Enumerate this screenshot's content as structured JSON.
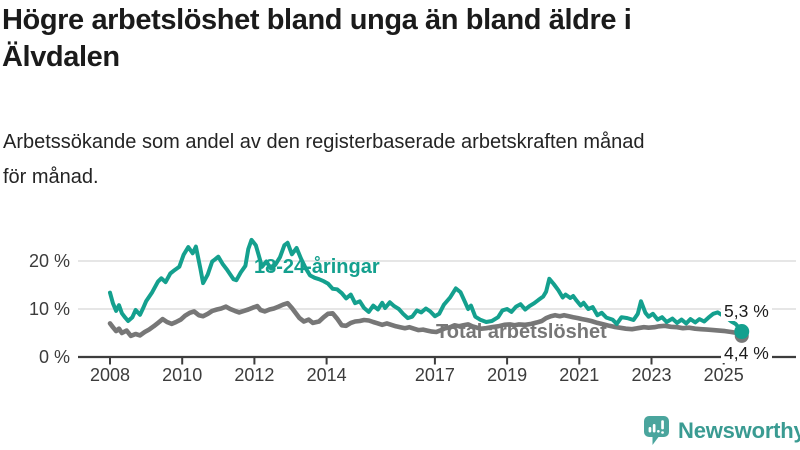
{
  "header": {
    "title": "Högre arbetslöshet bland unga än bland äldre i Älvdalen",
    "title_lines": [
      "Högre arbetslöshet bland unga än bland äldre i",
      "Älvdalen"
    ],
    "subtitle": "Arbetssökande som andel av den registerbaserade arbetskraften månad för månad.",
    "subtitle_lines": [
      "Arbetssökande som andel av den registerbaserade arbetskraften månad",
      "för månad."
    ]
  },
  "footer": {
    "brand": "Newsworthy",
    "brand_color": "#3a9b92",
    "brand_icon": "bar-chart-speech-bubble-icon",
    "brand_icon_color": "#4aa59d"
  },
  "chart_data": {
    "type": "line",
    "title": "Högre arbetslöshet bland unga än bland äldre i Älvdalen",
    "subtitle": "Arbetssökande som andel av den registerbaserade arbetskraften månad för månad.",
    "unit": "%",
    "xlabel": "",
    "ylabel": "",
    "xlim": [
      2007.2,
      2026.1
    ],
    "ylim": [
      0,
      26
    ],
    "grid": "horizontal",
    "legend_position": "inline-labels",
    "x_ticks": [
      2008,
      2010,
      2012,
      2014,
      2017,
      2019,
      2021,
      2023,
      2025
    ],
    "x_tick_labels": [
      "2008",
      "2010",
      "2012",
      "2014",
      "2017",
      "2019",
      "2021",
      "2023",
      "2025"
    ],
    "y_ticks": [
      {
        "value": 0,
        "label": "0 %"
      },
      {
        "value": 10,
        "label": "10 %"
      },
      {
        "value": 20,
        "label": "20 %"
      }
    ],
    "colors": {
      "grid": "#dedede",
      "axis": "#3d3d3d",
      "tick_text": "#3c3c3c"
    },
    "series": [
      {
        "name": "18-24-åringar",
        "color": "#14a08e",
        "end_label": "5,3 %",
        "end_value": 5.3,
        "points": [
          [
            2008.0,
            13.4
          ],
          [
            2008.08,
            11.2
          ],
          [
            2008.17,
            9.6
          ],
          [
            2008.25,
            10.8
          ],
          [
            2008.33,
            9.1
          ],
          [
            2008.42,
            8.2
          ],
          [
            2008.5,
            7.5
          ],
          [
            2008.62,
            8.3
          ],
          [
            2008.71,
            9.8
          ],
          [
            2008.83,
            8.8
          ],
          [
            2008.92,
            10.2
          ],
          [
            2009.0,
            11.6
          ],
          [
            2009.17,
            13.5
          ],
          [
            2009.33,
            15.7
          ],
          [
            2009.42,
            16.4
          ],
          [
            2009.54,
            15.6
          ],
          [
            2009.67,
            17.4
          ],
          [
            2009.79,
            18.1
          ],
          [
            2009.92,
            18.8
          ],
          [
            2010.04,
            21.3
          ],
          [
            2010.17,
            22.9
          ],
          [
            2010.29,
            21.6
          ],
          [
            2010.38,
            23.0
          ],
          [
            2010.5,
            18.5
          ],
          [
            2010.58,
            15.4
          ],
          [
            2010.71,
            17.2
          ],
          [
            2010.83,
            19.9
          ],
          [
            2010.92,
            20.4
          ],
          [
            2011.0,
            20.9
          ],
          [
            2011.12,
            19.4
          ],
          [
            2011.25,
            18.1
          ],
          [
            2011.42,
            16.2
          ],
          [
            2011.5,
            16.0
          ],
          [
            2011.62,
            17.6
          ],
          [
            2011.75,
            19.0
          ],
          [
            2011.83,
            22.5
          ],
          [
            2011.92,
            24.4
          ],
          [
            2012.04,
            23.3
          ],
          [
            2012.12,
            21.2
          ],
          [
            2012.21,
            18.8
          ],
          [
            2012.33,
            19.9
          ],
          [
            2012.46,
            18.4
          ],
          [
            2012.58,
            19.2
          ],
          [
            2012.71,
            20.8
          ],
          [
            2012.83,
            23.3
          ],
          [
            2012.92,
            23.8
          ],
          [
            2013.04,
            21.4
          ],
          [
            2013.17,
            22.7
          ],
          [
            2013.29,
            20.5
          ],
          [
            2013.42,
            18.5
          ],
          [
            2013.54,
            17.0
          ],
          [
            2013.67,
            16.5
          ],
          [
            2013.79,
            16.2
          ],
          [
            2013.92,
            15.8
          ],
          [
            2014.04,
            15.3
          ],
          [
            2014.17,
            14.2
          ],
          [
            2014.29,
            14.1
          ],
          [
            2014.42,
            13.3
          ],
          [
            2014.54,
            12.2
          ],
          [
            2014.67,
            13.0
          ],
          [
            2014.79,
            11.2
          ],
          [
            2014.92,
            11.6
          ],
          [
            2015.04,
            10.2
          ],
          [
            2015.17,
            9.4
          ],
          [
            2015.29,
            10.7
          ],
          [
            2015.42,
            9.9
          ],
          [
            2015.54,
            11.3
          ],
          [
            2015.62,
            10.2
          ],
          [
            2015.75,
            11.4
          ],
          [
            2015.87,
            10.6
          ],
          [
            2016.0,
            10.0
          ],
          [
            2016.12,
            9.0
          ],
          [
            2016.25,
            8.1
          ],
          [
            2016.37,
            8.4
          ],
          [
            2016.5,
            9.7
          ],
          [
            2016.62,
            9.3
          ],
          [
            2016.75,
            10.1
          ],
          [
            2016.87,
            9.5
          ],
          [
            2017.0,
            8.5
          ],
          [
            2017.12,
            9.0
          ],
          [
            2017.25,
            10.9
          ],
          [
            2017.42,
            12.4
          ],
          [
            2017.58,
            14.3
          ],
          [
            2017.71,
            13.5
          ],
          [
            2017.83,
            11.5
          ],
          [
            2017.92,
            10.0
          ],
          [
            2018.0,
            10.7
          ],
          [
            2018.12,
            8.4
          ],
          [
            2018.25,
            7.8
          ],
          [
            2018.42,
            7.3
          ],
          [
            2018.58,
            7.5
          ],
          [
            2018.75,
            8.3
          ],
          [
            2018.87,
            9.7
          ],
          [
            2019.0,
            10.0
          ],
          [
            2019.12,
            9.4
          ],
          [
            2019.25,
            10.5
          ],
          [
            2019.37,
            11.0
          ],
          [
            2019.5,
            9.9
          ],
          [
            2019.62,
            10.6
          ],
          [
            2019.75,
            11.2
          ],
          [
            2019.87,
            11.9
          ],
          [
            2020.0,
            12.6
          ],
          [
            2020.08,
            13.6
          ],
          [
            2020.17,
            16.3
          ],
          [
            2020.29,
            15.2
          ],
          [
            2020.42,
            13.9
          ],
          [
            2020.54,
            12.4
          ],
          [
            2020.62,
            13.0
          ],
          [
            2020.75,
            12.3
          ],
          [
            2020.83,
            12.7
          ],
          [
            2020.92,
            11.8
          ],
          [
            2021.04,
            10.7
          ],
          [
            2021.12,
            11.3
          ],
          [
            2021.25,
            10.0
          ],
          [
            2021.37,
            10.4
          ],
          [
            2021.5,
            8.7
          ],
          [
            2021.62,
            9.2
          ],
          [
            2021.75,
            8.2
          ],
          [
            2021.92,
            7.8
          ],
          [
            2022.04,
            6.9
          ],
          [
            2022.17,
            8.3
          ],
          [
            2022.33,
            8.1
          ],
          [
            2022.5,
            7.7
          ],
          [
            2022.62,
            9.0
          ],
          [
            2022.71,
            11.6
          ],
          [
            2022.83,
            9.2
          ],
          [
            2022.92,
            8.4
          ],
          [
            2023.04,
            9.0
          ],
          [
            2023.17,
            7.8
          ],
          [
            2023.29,
            8.3
          ],
          [
            2023.42,
            7.3
          ],
          [
            2023.58,
            8.0
          ],
          [
            2023.71,
            7.1
          ],
          [
            2023.83,
            7.8
          ],
          [
            2023.96,
            7.0
          ],
          [
            2024.08,
            7.9
          ],
          [
            2024.21,
            7.2
          ],
          [
            2024.33,
            7.9
          ],
          [
            2024.46,
            7.4
          ],
          [
            2024.58,
            8.2
          ],
          [
            2024.71,
            9.0
          ],
          [
            2024.83,
            9.3
          ],
          [
            2024.96,
            8.7
          ],
          [
            2025.08,
            8.2
          ],
          [
            2025.21,
            7.4
          ],
          [
            2025.33,
            6.9
          ],
          [
            2025.42,
            6.1
          ],
          [
            2025.5,
            5.3
          ]
        ]
      },
      {
        "name": "Total arbetslöshet",
        "color": "#777777",
        "end_label": "4,4 %",
        "end_value": 4.4,
        "points": [
          [
            2008.0,
            7.0
          ],
          [
            2008.08,
            6.2
          ],
          [
            2008.17,
            5.4
          ],
          [
            2008.25,
            5.9
          ],
          [
            2008.33,
            5.0
          ],
          [
            2008.46,
            5.5
          ],
          [
            2008.58,
            4.4
          ],
          [
            2008.71,
            4.8
          ],
          [
            2008.83,
            4.5
          ],
          [
            2008.96,
            5.2
          ],
          [
            2009.08,
            5.7
          ],
          [
            2009.21,
            6.4
          ],
          [
            2009.33,
            7.1
          ],
          [
            2009.46,
            7.9
          ],
          [
            2009.58,
            7.3
          ],
          [
            2009.71,
            6.9
          ],
          [
            2009.83,
            7.3
          ],
          [
            2009.96,
            7.8
          ],
          [
            2010.08,
            8.6
          ],
          [
            2010.21,
            9.2
          ],
          [
            2010.33,
            9.5
          ],
          [
            2010.46,
            8.7
          ],
          [
            2010.58,
            8.5
          ],
          [
            2010.71,
            9.0
          ],
          [
            2010.83,
            9.6
          ],
          [
            2010.96,
            9.9
          ],
          [
            2011.08,
            10.1
          ],
          [
            2011.21,
            10.5
          ],
          [
            2011.33,
            10.0
          ],
          [
            2011.46,
            9.6
          ],
          [
            2011.58,
            9.3
          ],
          [
            2011.71,
            9.6
          ],
          [
            2011.83,
            9.9
          ],
          [
            2011.96,
            10.3
          ],
          [
            2012.08,
            10.6
          ],
          [
            2012.17,
            9.8
          ],
          [
            2012.29,
            9.5
          ],
          [
            2012.42,
            9.9
          ],
          [
            2012.54,
            10.1
          ],
          [
            2012.67,
            10.5
          ],
          [
            2012.79,
            10.9
          ],
          [
            2012.92,
            11.2
          ],
          [
            2013.04,
            10.2
          ],
          [
            2013.12,
            9.4
          ],
          [
            2013.25,
            8.1
          ],
          [
            2013.37,
            7.4
          ],
          [
            2013.5,
            7.8
          ],
          [
            2013.62,
            7.1
          ],
          [
            2013.79,
            7.4
          ],
          [
            2013.92,
            8.3
          ],
          [
            2014.04,
            9.0
          ],
          [
            2014.17,
            9.1
          ],
          [
            2014.29,
            8.0
          ],
          [
            2014.42,
            6.6
          ],
          [
            2014.54,
            6.5
          ],
          [
            2014.67,
            7.1
          ],
          [
            2014.79,
            7.4
          ],
          [
            2014.92,
            7.5
          ],
          [
            2015.04,
            7.7
          ],
          [
            2015.17,
            7.6
          ],
          [
            2015.29,
            7.3
          ],
          [
            2015.42,
            7.0
          ],
          [
            2015.54,
            6.7
          ],
          [
            2015.67,
            7.0
          ],
          [
            2015.79,
            6.7
          ],
          [
            2015.92,
            6.4
          ],
          [
            2016.04,
            6.2
          ],
          [
            2016.17,
            6.0
          ],
          [
            2016.29,
            6.2
          ],
          [
            2016.42,
            5.9
          ],
          [
            2016.54,
            5.6
          ],
          [
            2016.67,
            5.7
          ],
          [
            2016.79,
            5.5
          ],
          [
            2016.92,
            5.3
          ],
          [
            2017.04,
            5.2
          ],
          [
            2017.17,
            5.6
          ],
          [
            2017.29,
            6.0
          ],
          [
            2017.42,
            6.2
          ],
          [
            2017.54,
            6.6
          ],
          [
            2017.67,
            6.4
          ],
          [
            2017.79,
            6.6
          ],
          [
            2017.92,
            6.8
          ],
          [
            2018.04,
            6.4
          ],
          [
            2018.17,
            6.1
          ],
          [
            2018.29,
            5.9
          ],
          [
            2018.42,
            6.0
          ],
          [
            2018.58,
            6.2
          ],
          [
            2018.75,
            6.4
          ],
          [
            2018.92,
            6.7
          ],
          [
            2019.08,
            6.8
          ],
          [
            2019.21,
            6.6
          ],
          [
            2019.33,
            6.8
          ],
          [
            2019.5,
            6.7
          ],
          [
            2019.67,
            6.9
          ],
          [
            2019.83,
            7.2
          ],
          [
            2019.96,
            7.5
          ],
          [
            2020.08,
            8.1
          ],
          [
            2020.21,
            8.5
          ],
          [
            2020.33,
            8.7
          ],
          [
            2020.46,
            8.5
          ],
          [
            2020.58,
            8.7
          ],
          [
            2020.71,
            8.5
          ],
          [
            2020.83,
            8.3
          ],
          [
            2020.96,
            8.1
          ],
          [
            2021.08,
            7.9
          ],
          [
            2021.21,
            7.7
          ],
          [
            2021.33,
            7.5
          ],
          [
            2021.5,
            7.1
          ],
          [
            2021.67,
            6.8
          ],
          [
            2021.83,
            6.5
          ],
          [
            2021.96,
            6.3
          ],
          [
            2022.12,
            6.1
          ],
          [
            2022.29,
            5.9
          ],
          [
            2022.46,
            5.8
          ],
          [
            2022.62,
            6.0
          ],
          [
            2022.79,
            6.2
          ],
          [
            2022.92,
            6.1
          ],
          [
            2023.08,
            6.2
          ],
          [
            2023.21,
            6.4
          ],
          [
            2023.37,
            6.5
          ],
          [
            2023.54,
            6.3
          ],
          [
            2023.71,
            6.2
          ],
          [
            2023.87,
            6.0
          ],
          [
            2024.04,
            6.1
          ],
          [
            2024.21,
            5.9
          ],
          [
            2024.37,
            5.8
          ],
          [
            2024.54,
            5.7
          ],
          [
            2024.71,
            5.6
          ],
          [
            2024.87,
            5.5
          ],
          [
            2025.04,
            5.4
          ],
          [
            2025.21,
            5.2
          ],
          [
            2025.37,
            5.0
          ],
          [
            2025.5,
            4.4
          ]
        ]
      }
    ]
  }
}
